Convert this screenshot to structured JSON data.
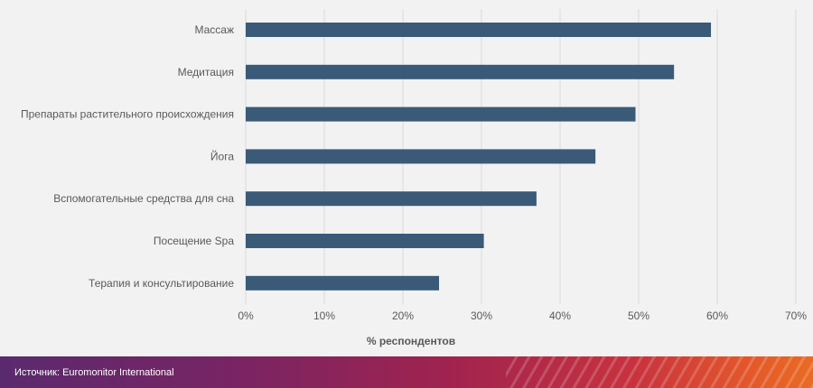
{
  "chart_data": {
    "type": "bar",
    "orientation": "horizontal",
    "categories": [
      "Массаж",
      "Медитация",
      "Препараты растительного происхождения",
      "Йога",
      "Вспомогательные средства для сна",
      "Посещение Spa",
      "Терапия и консультирование"
    ],
    "values": [
      59.2,
      54.5,
      49.6,
      44.5,
      37.0,
      30.3,
      24.6
    ],
    "xlabel": "% респондентов",
    "xlim": [
      0,
      70
    ],
    "xticks": [
      "0%",
      "10%",
      "20%",
      "30%",
      "40%",
      "50%",
      "60%",
      "70%"
    ],
    "grid": true,
    "bar_color": "#3a5a78"
  },
  "footer": {
    "source": "Источник: Euromonitor International"
  }
}
